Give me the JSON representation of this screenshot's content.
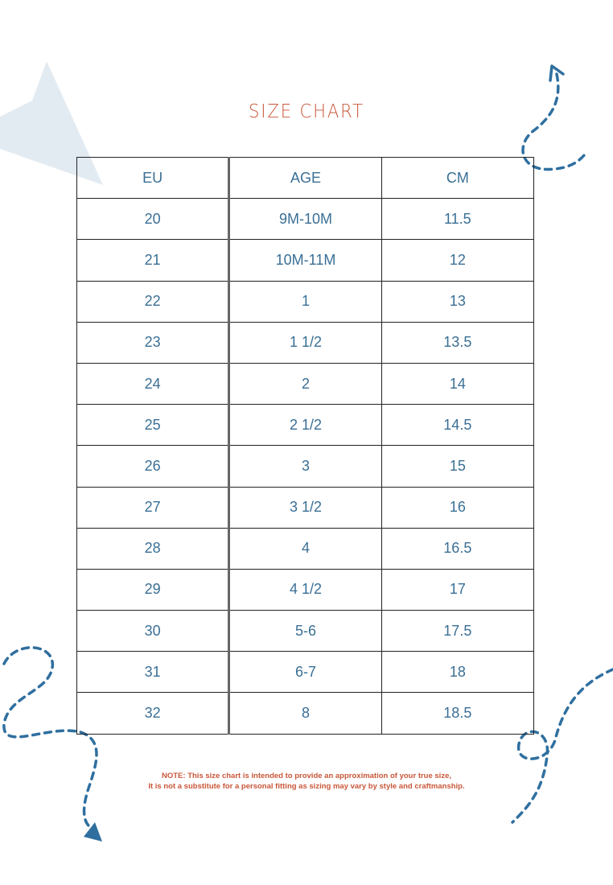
{
  "title": "SIZE CHART",
  "table": {
    "headers": [
      "EU",
      "AGE",
      "CM"
    ],
    "rows": [
      [
        "20",
        "9M-10M",
        "11.5"
      ],
      [
        "21",
        "10M-11M",
        "12"
      ],
      [
        "22",
        "1",
        "13"
      ],
      [
        "23",
        "1 1/2",
        "13.5"
      ],
      [
        "24",
        "2",
        "14"
      ],
      [
        "25",
        "2 1/2",
        "14.5"
      ],
      [
        "26",
        "3",
        "15"
      ],
      [
        "27",
        "3 1/2",
        "16"
      ],
      [
        "28",
        "4",
        "16.5"
      ],
      [
        "29",
        "4 1/2",
        "17"
      ],
      [
        "30",
        "5-6",
        "17.5"
      ],
      [
        "31",
        "6-7",
        "18"
      ],
      [
        "32",
        "8",
        "18.5"
      ]
    ]
  },
  "note": {
    "line1": "NOTE: This size chart is intended to provide an approximation of your true size,",
    "line2": "It is not a substitute for a personal fitting as sizing may vary by style and craftmanship."
  },
  "colors": {
    "title": "#c9573a",
    "text": "#3a6f95",
    "decoration": "#2f6f9f",
    "star": "#e3ebf2"
  }
}
